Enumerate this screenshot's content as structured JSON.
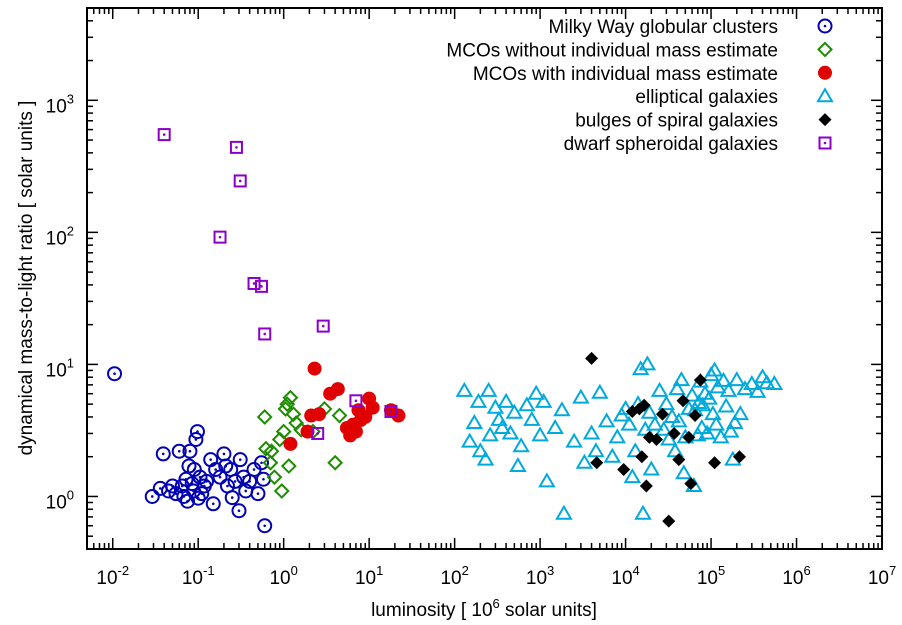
{
  "chart_data": {
    "type": "scatter",
    "xscale": "log",
    "yscale": "log",
    "xlim": [
      0.005,
      10000000
    ],
    "ylim": [
      0.4,
      5000
    ],
    "xlabel": {
      "pre": "luminosity   [ 10",
      "sup": "6",
      "post": " solar units]"
    },
    "ylabel": "dynamical mass-to-light ratio   [ solar units ]",
    "grid": false,
    "legend_position": "top-right",
    "x_ticks": [
      {
        "base": "10",
        "exp": "-2",
        "value": 0.01
      },
      {
        "base": "10",
        "exp": "-1",
        "value": 0.1
      },
      {
        "base": "10",
        "exp": "0",
        "value": 1
      },
      {
        "base": "10",
        "exp": "1",
        "value": 10
      },
      {
        "base": "10",
        "exp": "2",
        "value": 100
      },
      {
        "base": "10",
        "exp": "3",
        "value": 1000
      },
      {
        "base": "10",
        "exp": "4",
        "value": 10000
      },
      {
        "base": "10",
        "exp": "5",
        "value": 100000
      },
      {
        "base": "10",
        "exp": "6",
        "value": 1000000
      },
      {
        "base": "10",
        "exp": "7",
        "value": 10000000
      }
    ],
    "y_ticks": [
      {
        "base": "10",
        "exp": "0",
        "value": 1
      },
      {
        "base": "10",
        "exp": "1",
        "value": 10
      },
      {
        "base": "10",
        "exp": "2",
        "value": 100
      },
      {
        "base": "10",
        "exp": "3",
        "value": 1000
      }
    ],
    "series": [
      {
        "name": "Milky Way globular clusters",
        "marker": "circle-dot",
        "color": "#0000b4",
        "points": [
          [
            0.0105,
            8.5
          ],
          [
            0.029,
            1.0
          ],
          [
            0.036,
            1.15
          ],
          [
            0.039,
            2.1
          ],
          [
            0.045,
            1.1
          ],
          [
            0.05,
            1.2
          ],
          [
            0.055,
            1.05
          ],
          [
            0.06,
            2.2
          ],
          [
            0.065,
            1.2
          ],
          [
            0.068,
            1.0
          ],
          [
            0.072,
            1.35
          ],
          [
            0.075,
            0.92
          ],
          [
            0.078,
            1.7
          ],
          [
            0.08,
            2.2
          ],
          [
            0.085,
            1.25
          ],
          [
            0.088,
            1.1
          ],
          [
            0.09,
            1.6
          ],
          [
            0.094,
            2.7
          ],
          [
            0.098,
            3.1
          ],
          [
            0.1,
            0.97
          ],
          [
            0.105,
            1.4
          ],
          [
            0.11,
            1.05
          ],
          [
            0.118,
            1.2
          ],
          [
            0.125,
            1.3
          ],
          [
            0.14,
            1.9
          ],
          [
            0.15,
            0.88
          ],
          [
            0.16,
            1.6
          ],
          [
            0.18,
            1.4
          ],
          [
            0.2,
            2.1
          ],
          [
            0.21,
            1.7
          ],
          [
            0.22,
            1.2
          ],
          [
            0.24,
            1.6
          ],
          [
            0.25,
            0.98
          ],
          [
            0.27,
            1.3
          ],
          [
            0.3,
            0.78
          ],
          [
            0.31,
            1.9
          ],
          [
            0.34,
            1.4
          ],
          [
            0.36,
            1.1
          ],
          [
            0.4,
            1.3
          ],
          [
            0.45,
            1.6
          ],
          [
            0.5,
            1.05
          ],
          [
            0.55,
            1.8
          ],
          [
            0.58,
            1.35
          ],
          [
            0.6,
            0.6
          ]
        ]
      },
      {
        "name": "MCOs without individual mass estimate",
        "marker": "diamond-open",
        "color": "#1e8c00",
        "points": [
          [
            0.6,
            4.0
          ],
          [
            0.62,
            2.3
          ],
          [
            0.7,
            1.8
          ],
          [
            0.72,
            2.2
          ],
          [
            0.78,
            1.4
          ],
          [
            0.9,
            2.7
          ],
          [
            0.95,
            1.1
          ],
          [
            1.0,
            3.1
          ],
          [
            1.05,
            4.6
          ],
          [
            1.1,
            5.0
          ],
          [
            1.15,
            1.7
          ],
          [
            1.2,
            5.6
          ],
          [
            1.3,
            4.2
          ],
          [
            1.4,
            3.6
          ],
          [
            1.6,
            3.2
          ],
          [
            2.2,
            3.1
          ],
          [
            3.0,
            4.6
          ],
          [
            4.0,
            1.8
          ],
          [
            4.5,
            4.1
          ]
        ]
      },
      {
        "name": "MCOs with individual mass estimate",
        "marker": "circle-filled",
        "color": "#e00000",
        "points": [
          [
            1.2,
            2.5
          ],
          [
            1.9,
            3.1
          ],
          [
            2.1,
            4.1
          ],
          [
            2.3,
            9.3
          ],
          [
            2.6,
            4.2
          ],
          [
            3.5,
            6.0
          ],
          [
            4.3,
            6.5
          ],
          [
            5.5,
            3.3
          ],
          [
            6.0,
            2.9
          ],
          [
            6.5,
            3.5
          ],
          [
            7.0,
            3.1
          ],
          [
            7.5,
            4.5
          ],
          [
            8.0,
            3.8
          ],
          [
            9.0,
            4.0
          ],
          [
            10.0,
            5.5
          ],
          [
            11.0,
            4.7
          ],
          [
            18.0,
            4.5
          ],
          [
            22.0,
            4.1
          ]
        ]
      },
      {
        "name": "elliptical galaxies",
        "marker": "triangle-open",
        "color": "#00aadc",
        "points": [
          [
            130,
            6.3
          ],
          [
            150,
            2.6
          ],
          [
            170,
            3.6
          ],
          [
            190,
            5.2
          ],
          [
            200,
            2.2
          ],
          [
            230,
            1.9
          ],
          [
            250,
            6.3
          ],
          [
            260,
            2.9
          ],
          [
            300,
            4.7
          ],
          [
            330,
            3.8
          ],
          [
            360,
            3.3
          ],
          [
            400,
            5.2
          ],
          [
            450,
            3.0
          ],
          [
            500,
            4.3
          ],
          [
            550,
            1.7
          ],
          [
            600,
            2.4
          ],
          [
            700,
            4.9
          ],
          [
            800,
            3.8
          ],
          [
            900,
            6.0
          ],
          [
            1000,
            2.9
          ],
          [
            1100,
            5.2
          ],
          [
            1200,
            1.3
          ],
          [
            1500,
            3.3
          ],
          [
            1800,
            4.5
          ],
          [
            1900,
            0.74
          ],
          [
            2500,
            2.6
          ],
          [
            3000,
            5.6
          ],
          [
            3300,
            1.8
          ],
          [
            4000,
            3.0
          ],
          [
            4500,
            2.2
          ],
          [
            5000,
            6.1
          ],
          [
            6000,
            3.7
          ],
          [
            7000,
            2.0
          ],
          [
            8000,
            2.8
          ],
          [
            9000,
            4.1
          ],
          [
            10000,
            4.6
          ],
          [
            11000,
            3.5
          ],
          [
            12000,
            1.4
          ],
          [
            13000,
            2.2
          ],
          [
            14000,
            5.0
          ],
          [
            15000,
            9.2
          ],
          [
            16000,
            0.74
          ],
          [
            17000,
            3.2
          ],
          [
            18000,
            10.0
          ],
          [
            19000,
            4.3
          ],
          [
            20000,
            1.6
          ],
          [
            22000,
            3.5
          ],
          [
            25000,
            6.3
          ],
          [
            28000,
            3.2
          ],
          [
            30000,
            5.0
          ],
          [
            32000,
            2.7
          ],
          [
            35000,
            4.0
          ],
          [
            38000,
            2.2
          ],
          [
            40000,
            6.5
          ],
          [
            42000,
            3.7
          ],
          [
            45000,
            7.6
          ],
          [
            48000,
            1.5
          ],
          [
            50000,
            2.8
          ],
          [
            55000,
            4.6
          ],
          [
            60000,
            5.8
          ],
          [
            63000,
            1.2
          ],
          [
            65000,
            4.5
          ],
          [
            70000,
            2.9
          ],
          [
            72000,
            5.1
          ],
          [
            75000,
            7.4
          ],
          [
            78000,
            3.3
          ],
          [
            80000,
            4.9
          ],
          [
            85000,
            6.0
          ],
          [
            90000,
            3.0
          ],
          [
            95000,
            5.5
          ],
          [
            100000,
            8.3
          ],
          [
            105000,
            4.2
          ],
          [
            110000,
            9.0
          ],
          [
            115000,
            3.5
          ],
          [
            120000,
            6.7
          ],
          [
            130000,
            2.8
          ],
          [
            140000,
            7.5
          ],
          [
            150000,
            4.8
          ],
          [
            160000,
            6.3
          ],
          [
            170000,
            3.1
          ],
          [
            180000,
            1.9
          ],
          [
            190000,
            3.6
          ],
          [
            200000,
            7.6
          ],
          [
            220000,
            4.2
          ],
          [
            250000,
            6.5
          ],
          [
            300000,
            7.1
          ],
          [
            350000,
            6.2
          ],
          [
            400000,
            8.0
          ],
          [
            450000,
            7.2
          ],
          [
            550000,
            7.1
          ]
        ]
      },
      {
        "name": "bulges of spiral galaxies",
        "marker": "diamond-filled",
        "color": "#000000",
        "points": [
          [
            4000,
            11.1
          ],
          [
            4600,
            1.8
          ],
          [
            9500,
            1.6
          ],
          [
            12000,
            4.4
          ],
          [
            14500,
            4.6
          ],
          [
            15500,
            2.0
          ],
          [
            16500,
            4.9
          ],
          [
            17500,
            1.2
          ],
          [
            19000,
            2.8
          ],
          [
            23000,
            2.7
          ],
          [
            27000,
            4.2
          ],
          [
            32000,
            0.65
          ],
          [
            37000,
            3.0
          ],
          [
            42000,
            1.9
          ],
          [
            47000,
            5.3
          ],
          [
            55000,
            2.8
          ],
          [
            58000,
            1.25
          ],
          [
            65000,
            4.1
          ],
          [
            75000,
            7.6
          ],
          [
            110000,
            1.8
          ],
          [
            215000,
            2.0
          ]
        ]
      },
      {
        "name": "dwarf spheroidal galaxies",
        "marker": "square-dot",
        "color": "#8a00c8",
        "points": [
          [
            0.04,
            550
          ],
          [
            0.18,
            92
          ],
          [
            0.28,
            440
          ],
          [
            0.31,
            245
          ],
          [
            0.45,
            41
          ],
          [
            0.55,
            39
          ],
          [
            0.6,
            17
          ],
          [
            2.5,
            3.0
          ],
          [
            2.9,
            19.5
          ],
          [
            7.0,
            5.3
          ],
          [
            18.0,
            4.4
          ]
        ]
      }
    ]
  }
}
